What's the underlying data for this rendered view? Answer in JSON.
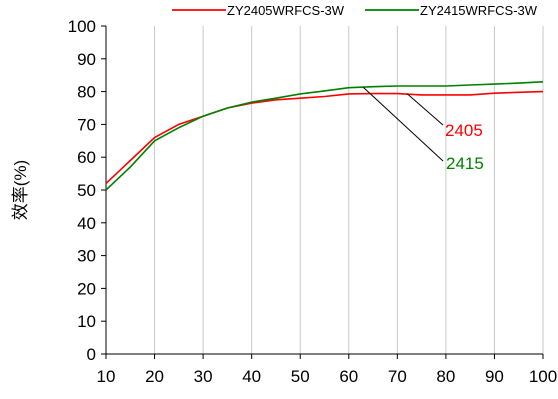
{
  "chart_data": {
    "type": "line",
    "title": "",
    "xlabel": "",
    "ylabel": "效率(%)",
    "xlim": [
      10,
      100
    ],
    "ylim": [
      0,
      100
    ],
    "xticks": [
      10,
      20,
      30,
      40,
      50,
      60,
      70,
      80,
      90,
      100
    ],
    "yticks": [
      0,
      10,
      20,
      30,
      40,
      50,
      60,
      70,
      80,
      90,
      100
    ],
    "grid": "vertical",
    "legend": "top",
    "series": [
      {
        "name": "ZY2405WRFCS-3W",
        "color": "#ff0000",
        "x": [
          10,
          15,
          20,
          25,
          30,
          35,
          40,
          45,
          50,
          55,
          60,
          65,
          70,
          75,
          80,
          85,
          90,
          95,
          100
        ],
        "y": [
          52,
          59,
          66,
          70,
          72.5,
          75,
          76.5,
          77.5,
          78,
          78.5,
          79.3,
          79.4,
          79.4,
          79,
          79,
          79,
          79.5,
          79.8,
          80
        ]
      },
      {
        "name": "ZY2415WRFCS-3W",
        "color": "#008000",
        "x": [
          10,
          15,
          20,
          25,
          30,
          35,
          40,
          45,
          50,
          55,
          60,
          65,
          70,
          75,
          80,
          85,
          90,
          95,
          100
        ],
        "y": [
          50,
          57,
          65,
          69,
          72.5,
          75,
          76.8,
          78,
          79.3,
          80.2,
          81.2,
          81.5,
          81.7,
          81.7,
          81.7,
          82,
          82.3,
          82.6,
          83
        ]
      }
    ],
    "annotations": [
      {
        "text": "2405",
        "color": "#ff0000",
        "x": 72,
        "y": 79.4
      },
      {
        "text": "2415",
        "color": "#008000",
        "x": 63,
        "y": 81.3
      }
    ]
  }
}
